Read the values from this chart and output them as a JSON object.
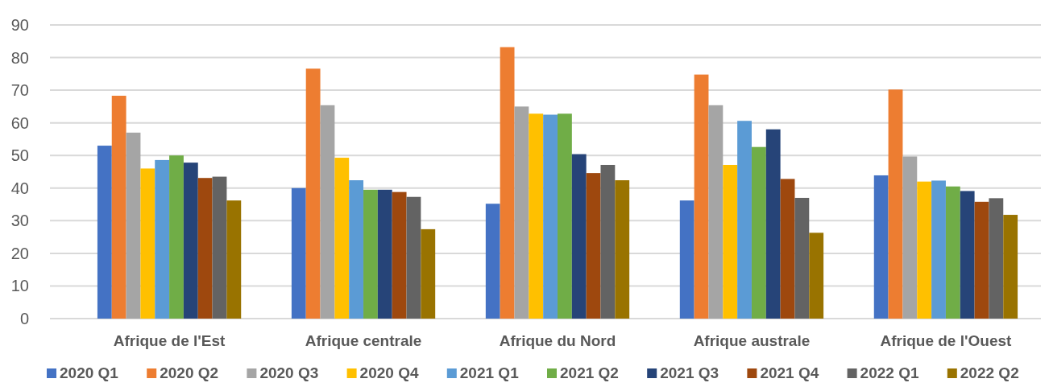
{
  "chart_data": {
    "type": "bar",
    "categories": [
      "Afrique de l'Est",
      "Afrique centrale",
      "Afrique du Nord",
      "Afrique australe",
      "Afrique de l'Ouest"
    ],
    "series": [
      {
        "name": "2020 Q1",
        "color": "#4472c4",
        "values": [
          53,
          40,
          35.2,
          36.2,
          43.9
        ]
      },
      {
        "name": "2020 Q2",
        "color": "#ed7d31",
        "values": [
          68.3,
          76.6,
          83.2,
          74.8,
          70.2
        ]
      },
      {
        "name": "2020 Q3",
        "color": "#a5a5a5",
        "values": [
          57,
          65.4,
          65,
          65.4,
          49.7
        ]
      },
      {
        "name": "2020 Q4",
        "color": "#ffc000",
        "values": [
          46,
          49.3,
          62.8,
          47.1,
          42
        ]
      },
      {
        "name": "2021 Q1",
        "color": "#5b9bd5",
        "values": [
          48.6,
          42.4,
          62.5,
          60.6,
          42.3
        ]
      },
      {
        "name": "2021 Q2",
        "color": "#70ad47",
        "values": [
          50,
          39.5,
          62.8,
          52.6,
          40.5
        ]
      },
      {
        "name": "2021 Q3",
        "color": "#264478",
        "values": [
          47.8,
          39.5,
          50.4,
          58,
          39.1
        ]
      },
      {
        "name": "2021 Q4",
        "color": "#9e480e",
        "values": [
          43.1,
          38.8,
          44.6,
          42.8,
          35.8
        ]
      },
      {
        "name": "2022 Q1",
        "color": "#636363",
        "values": [
          43.5,
          37.3,
          47.1,
          37,
          36.9
        ]
      },
      {
        "name": "2022 Q2",
        "color": "#997300",
        "values": [
          36.2,
          27.4,
          42.4,
          26.3,
          31.8
        ]
      }
    ],
    "ylim": [
      0,
      90
    ],
    "yticks": [
      0,
      10,
      20,
      30,
      40,
      50,
      60,
      70,
      80,
      90
    ],
    "grid": "y",
    "legend": "bottom"
  }
}
